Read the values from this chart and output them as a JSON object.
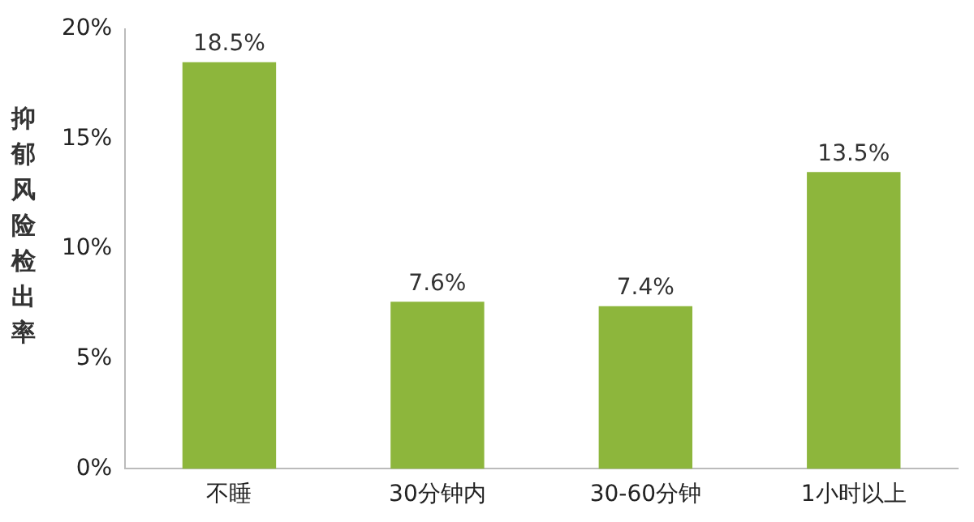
{
  "chart_data": {
    "type": "bar",
    "ylabel": "抑郁风险检出率",
    "categories": [
      "不睡",
      "30分钟内",
      "30-60分钟",
      "1小时以上"
    ],
    "values": [
      18.5,
      7.6,
      7.4,
      13.5
    ],
    "color": "#8db63c",
    "value_labels": [
      "18.5%",
      "7.6%",
      "7.4%",
      "13.5%"
    ],
    "ylim": [
      0,
      20
    ],
    "yticks": [
      {
        "value": 0,
        "label": "0%"
      },
      {
        "value": 5,
        "label": "5%"
      },
      {
        "value": 10,
        "label": "10%"
      },
      {
        "value": 15,
        "label": "15%"
      },
      {
        "value": 20,
        "label": "20%"
      }
    ],
    "grid": false,
    "legend": false
  }
}
